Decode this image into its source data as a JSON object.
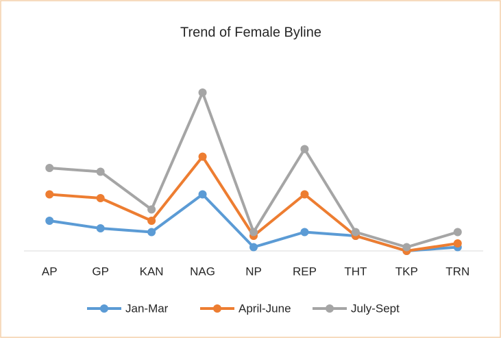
{
  "chart_data": {
    "type": "line",
    "title": "Trend of Female Byline",
    "categories": [
      "AP",
      "GP",
      "KAN",
      "NAG",
      "NP",
      "REP",
      "THT",
      "TKP",
      "TRN"
    ],
    "series": [
      {
        "name": "Jan-Mar",
        "color": "#5b9bd5",
        "values": [
          8,
          6,
          5,
          15,
          1,
          5,
          4,
          0,
          1
        ]
      },
      {
        "name": "April-June",
        "color": "#ed7d31",
        "values": [
          15,
          14,
          8,
          25,
          4,
          15,
          4,
          0,
          2
        ]
      },
      {
        "name": "July-Sept",
        "color": "#a5a5a5",
        "values": [
          22,
          21,
          11,
          42,
          5,
          27,
          5,
          1,
          5
        ]
      }
    ],
    "ylim": [
      0,
      45
    ],
    "legend": "bottom"
  }
}
